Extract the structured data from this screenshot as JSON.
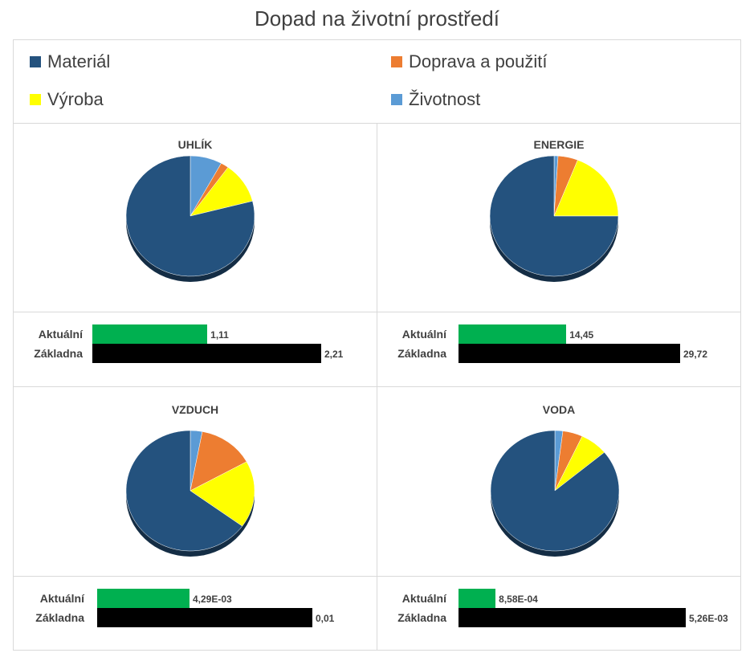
{
  "title": "Dopad na životní prostředí",
  "legend": [
    {
      "label": "Materiál",
      "color": "#24527e"
    },
    {
      "label": "Doprava a použití",
      "color": "#ed7d31"
    },
    {
      "label": "Výroba",
      "color": "#ffff00"
    },
    {
      "label": "Životnost",
      "color": "#5b9bd5"
    }
  ],
  "bar_labels": {
    "current": "Aktuální",
    "baseline": "Základna"
  },
  "bar_colors": {
    "current": "#00b050",
    "baseline": "#000000"
  },
  "chart_data": [
    {
      "type": "pie",
      "title": "UHLÍK",
      "categories": [
        "Materiál",
        "Doprava a použití",
        "Výroba",
        "Životnost"
      ],
      "values": [
        79,
        2,
        11,
        8
      ],
      "comparison": {
        "current": 1.11,
        "current_label": "1,11",
        "baseline": 2.21,
        "baseline_label": "2,21"
      }
    },
    {
      "type": "pie",
      "title": "ENERGIE",
      "categories": [
        "Materiál",
        "Doprava a použití",
        "Výroba",
        "Životnost"
      ],
      "values": [
        75,
        5,
        19,
        1
      ],
      "comparison": {
        "current": 14.45,
        "current_label": "14,45",
        "baseline": 29.72,
        "baseline_label": "29,72"
      }
    },
    {
      "type": "pie",
      "title": "VZDUCH",
      "categories": [
        "Materiál",
        "Doprava a použití",
        "Výroba",
        "Životnost"
      ],
      "values": [
        65,
        14,
        18,
        3
      ],
      "comparison": {
        "current": 0.00429,
        "current_label": "4,29E-03",
        "baseline": 0.01,
        "baseline_label": "0,01"
      }
    },
    {
      "type": "pie",
      "title": "VODA",
      "categories": [
        "Materiál",
        "Doprava a použití",
        "Výroba",
        "Životnost"
      ],
      "values": [
        86,
        5,
        7,
        2
      ],
      "comparison": {
        "current": 0.000858,
        "current_label": "8,58E-04",
        "baseline": 0.00526,
        "baseline_label": "5,26E-03"
      }
    }
  ]
}
